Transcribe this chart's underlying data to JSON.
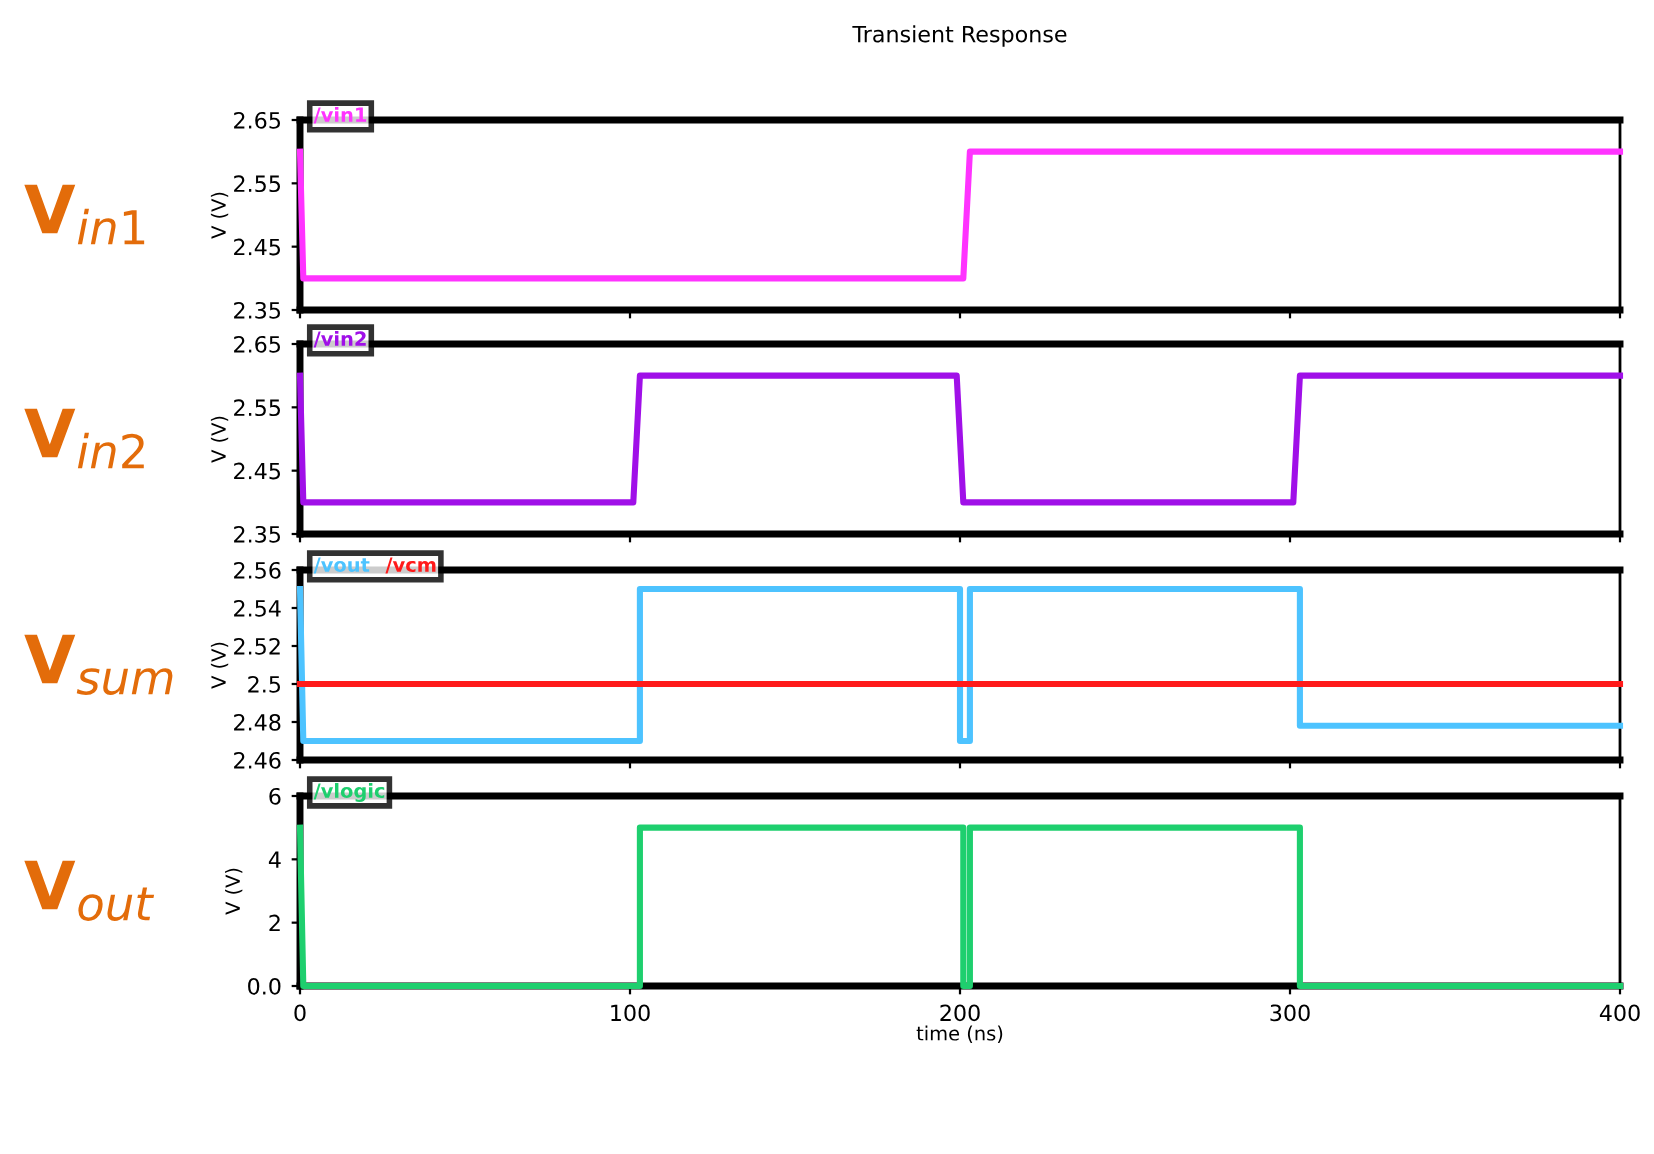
{
  "chart_data": [
    {
      "type": "line",
      "title": "Transient Response",
      "ylabel": "V (V)",
      "annotations": [
        "V$_{in1}$"
      ],
      "legend": "top left",
      "tick_labels": "y",
      "grid": false,
      "xlim": [
        0,
        400
      ],
      "xticks": [
        0,
        100,
        200,
        300,
        400
      ],
      "ylim": [
        2.35,
        2.65
      ],
      "yticks": [
        2.35,
        2.45,
        2.55,
        2.65
      ],
      "series": [
        {
          "name": "/vin1",
          "color": "#ff33ff",
          "x": [
            0,
            1,
            1,
            201,
            203,
            400
          ],
          "values": [
            2.6,
            2.4,
            2.4,
            2.4,
            2.6,
            2.6
          ]
        }
      ]
    },
    {
      "type": "line",
      "ylabel": "V (V)",
      "annotations": [
        "V$_{in2}$"
      ],
      "legend": "top left",
      "tick_labels": "y",
      "grid": false,
      "xlim": [
        0,
        400
      ],
      "xticks": [
        0,
        100,
        200,
        300,
        400
      ],
      "ylim": [
        2.35,
        2.65
      ],
      "yticks": [
        2.35,
        2.45,
        2.55,
        2.65
      ],
      "series": [
        {
          "name": "/vin2",
          "color": "#a010e8",
          "x": [
            0,
            1,
            101,
            103,
            199,
            201,
            301,
            303,
            400
          ],
          "values": [
            2.6,
            2.4,
            2.4,
            2.6,
            2.6,
            2.4,
            2.4,
            2.6,
            2.6
          ]
        }
      ]
    },
    {
      "type": "line",
      "ylabel": "V (V)",
      "annotations": [
        "V$_{sum}$"
      ],
      "legend": "top left",
      "tick_labels": "y",
      "grid": false,
      "xlim": [
        0,
        400
      ],
      "xticks": [
        0,
        100,
        200,
        300,
        400
      ],
      "ylim": [
        2.46,
        2.56
      ],
      "yticks": [
        2.46,
        2.48,
        2.5,
        2.52,
        2.54,
        2.56
      ],
      "series": [
        {
          "name": "/vout",
          "color": "#4dc3ff",
          "x": [
            0,
            1,
            103,
            103,
            200,
            200,
            203,
            203,
            303,
            303,
            400
          ],
          "values": [
            2.55,
            2.47,
            2.47,
            2.55,
            2.55,
            2.47,
            2.47,
            2.55,
            2.55,
            2.478,
            2.478
          ]
        },
        {
          "name": "/vcm",
          "color": "#ff1a1a",
          "x": [
            0,
            400
          ],
          "values": [
            2.5,
            2.5
          ]
        }
      ]
    },
    {
      "type": "line",
      "ylabel": "V (V)",
      "xlabel": "time (ns)",
      "annotations": [
        "V$_{out}$"
      ],
      "legend": "top left",
      "grid": false,
      "xlim": [
        0,
        400
      ],
      "xticks": [
        0,
        100,
        200,
        300,
        400
      ],
      "ylim": [
        0,
        6
      ],
      "yticks": [
        {
          "value": 0,
          "label": "0.0"
        },
        2,
        4,
        6
      ],
      "series": [
        {
          "name": "/vlogic",
          "color": "#1ecf6e",
          "x": [
            0,
            1,
            103,
            103,
            201,
            201,
            203,
            203,
            303,
            303,
            400
          ],
          "values": [
            5,
            0,
            0,
            5,
            5,
            0,
            0,
            5,
            5,
            0,
            0
          ]
        }
      ]
    }
  ]
}
